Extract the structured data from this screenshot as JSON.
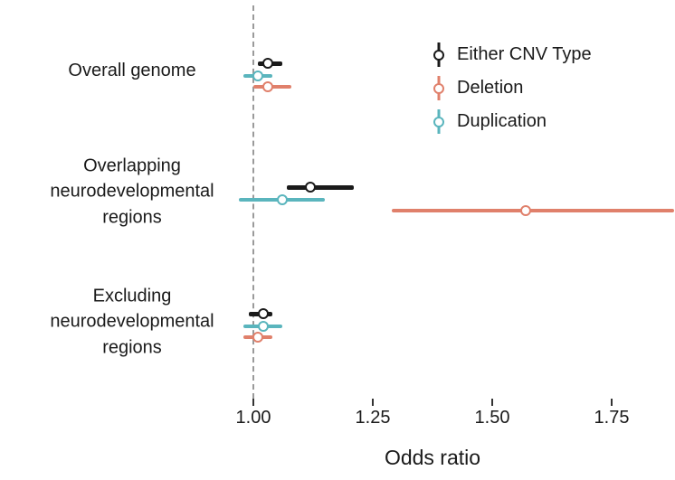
{
  "chart_data": {
    "type": "scatter",
    "subtype": "forest-pointrange",
    "title": "",
    "xlabel": "Odds ratio",
    "ylabel": "",
    "grid": false,
    "legend_position": "top-right",
    "reference_line": 1.0,
    "xlim": [
      0.93,
      1.88
    ],
    "x_tick_values": [
      1.0,
      1.25,
      1.5,
      1.75
    ],
    "x_tick_labels": [
      "1.00",
      "1.25",
      "1.50",
      "1.75"
    ],
    "categories": [
      "Overall genome",
      "Overlapping neurodevelopmental regions",
      "Excluding neurodevelopmental regions"
    ],
    "series": [
      {
        "name": "Either CNV Type",
        "color": "#1a1a1a",
        "points": [
          {
            "category": "Overall genome",
            "or": 1.03,
            "ci_low": 1.01,
            "ci_high": 1.06
          },
          {
            "category": "Overlapping neurodevelopmental regions",
            "or": 1.12,
            "ci_low": 1.07,
            "ci_high": 1.21
          },
          {
            "category": "Excluding neurodevelopmental regions",
            "or": 1.02,
            "ci_low": 0.99,
            "ci_high": 1.04
          }
        ]
      },
      {
        "name": "Deletion",
        "color": "#e0806b",
        "points": [
          {
            "category": "Overall genome",
            "or": 1.03,
            "ci_low": 1.0,
            "ci_high": 1.08
          },
          {
            "category": "Overlapping neurodevelopmental regions",
            "or": 1.57,
            "ci_low": 1.29,
            "ci_high": 1.88
          },
          {
            "category": "Excluding neurodevelopmental regions",
            "or": 1.01,
            "ci_low": 0.98,
            "ci_high": 1.04
          }
        ]
      },
      {
        "name": "Duplication",
        "color": "#5ab5bd",
        "points": [
          {
            "category": "Overall genome",
            "or": 1.01,
            "ci_low": 0.98,
            "ci_high": 1.04
          },
          {
            "category": "Overlapping neurodevelopmental regions",
            "or": 1.06,
            "ci_low": 0.97,
            "ci_high": 1.15
          },
          {
            "category": "Excluding neurodevelopmental regions",
            "or": 1.02,
            "ci_low": 0.98,
            "ci_high": 1.06
          }
        ]
      }
    ]
  }
}
